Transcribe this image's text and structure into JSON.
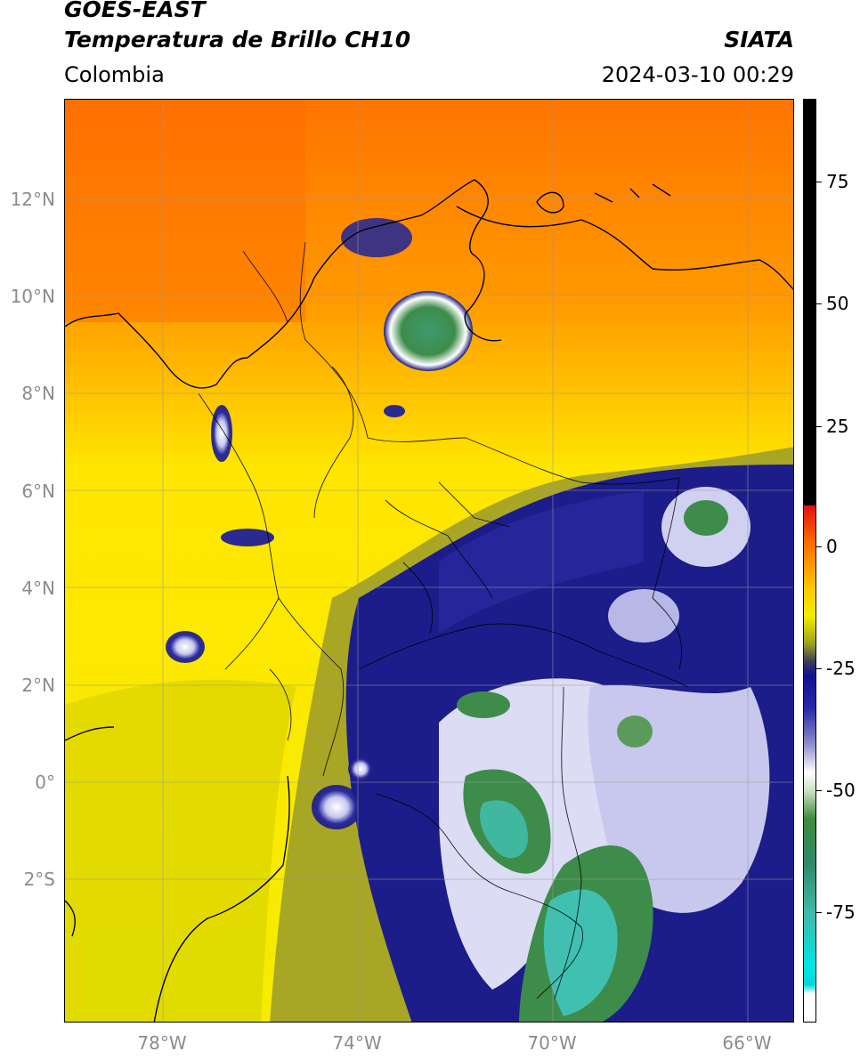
{
  "header": {
    "title_line1": "GOES-EAST",
    "title_line2": "Temperatura de Brillo CH10",
    "brand": "SIATA",
    "region": "Colombia",
    "datetime": "2024-03-10 00:29"
  },
  "map": {
    "lat_labels": [
      "12°N",
      "10°N",
      "8°N",
      "6°N",
      "4°N",
      "2°N",
      "0°",
      "2°S"
    ],
    "lon_labels": [
      "78°W",
      "74°W",
      "70°W",
      "66°W"
    ],
    "colors": {
      "warm_orange": "#ff7a00",
      "orange": "#ffa500",
      "yellow": "#ffee00",
      "olive": "#a6a030",
      "deep_blue": "#1a1a8c",
      "white": "#ffffff",
      "green": "#3d8c4a",
      "teal": "#40c0b0"
    }
  },
  "colorbar": {
    "tick_labels": [
      "75",
      "50",
      "25",
      "0",
      "-25",
      "-50",
      "-75"
    ]
  }
}
